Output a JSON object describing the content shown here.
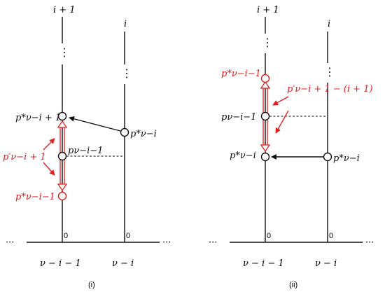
{
  "panels": [
    {
      "caption": "(i)",
      "top_labels": {
        "left": "i + 1",
        "right": "i"
      },
      "bottom_labels": {
        "left": "ν − i − 1",
        "right": "ν − i"
      },
      "zero_left": "0",
      "zero_right": "0",
      "ellipsis_left": "···",
      "ellipsis_right": "···",
      "label_top_point": "p*ν−i + 1",
      "label_mid_point": "pν−i−1",
      "label_bottom_point": "p*ν−i−1",
      "label_right_point": "p*ν−i",
      "annotation": "p′ν−i + 1"
    },
    {
      "caption": "(ii)",
      "top_labels": {
        "left": "i + 1",
        "right": "i"
      },
      "bottom_labels": {
        "left": "ν − i − 1",
        "right": "ν − i"
      },
      "zero_left": "0",
      "zero_right": "0",
      "ellipsis_left": "···",
      "ellipsis_right": "···",
      "label_top_point": "p*ν−i−1",
      "label_mid_point": "pν−i−1",
      "label_bottom_point": "p*ν−i",
      "label_right_point": "p*ν−i",
      "annotation": "p′ν−i + 1 − (i + 1)"
    }
  ],
  "colors": {
    "line": "#111111",
    "highlight": "#e02020"
  }
}
